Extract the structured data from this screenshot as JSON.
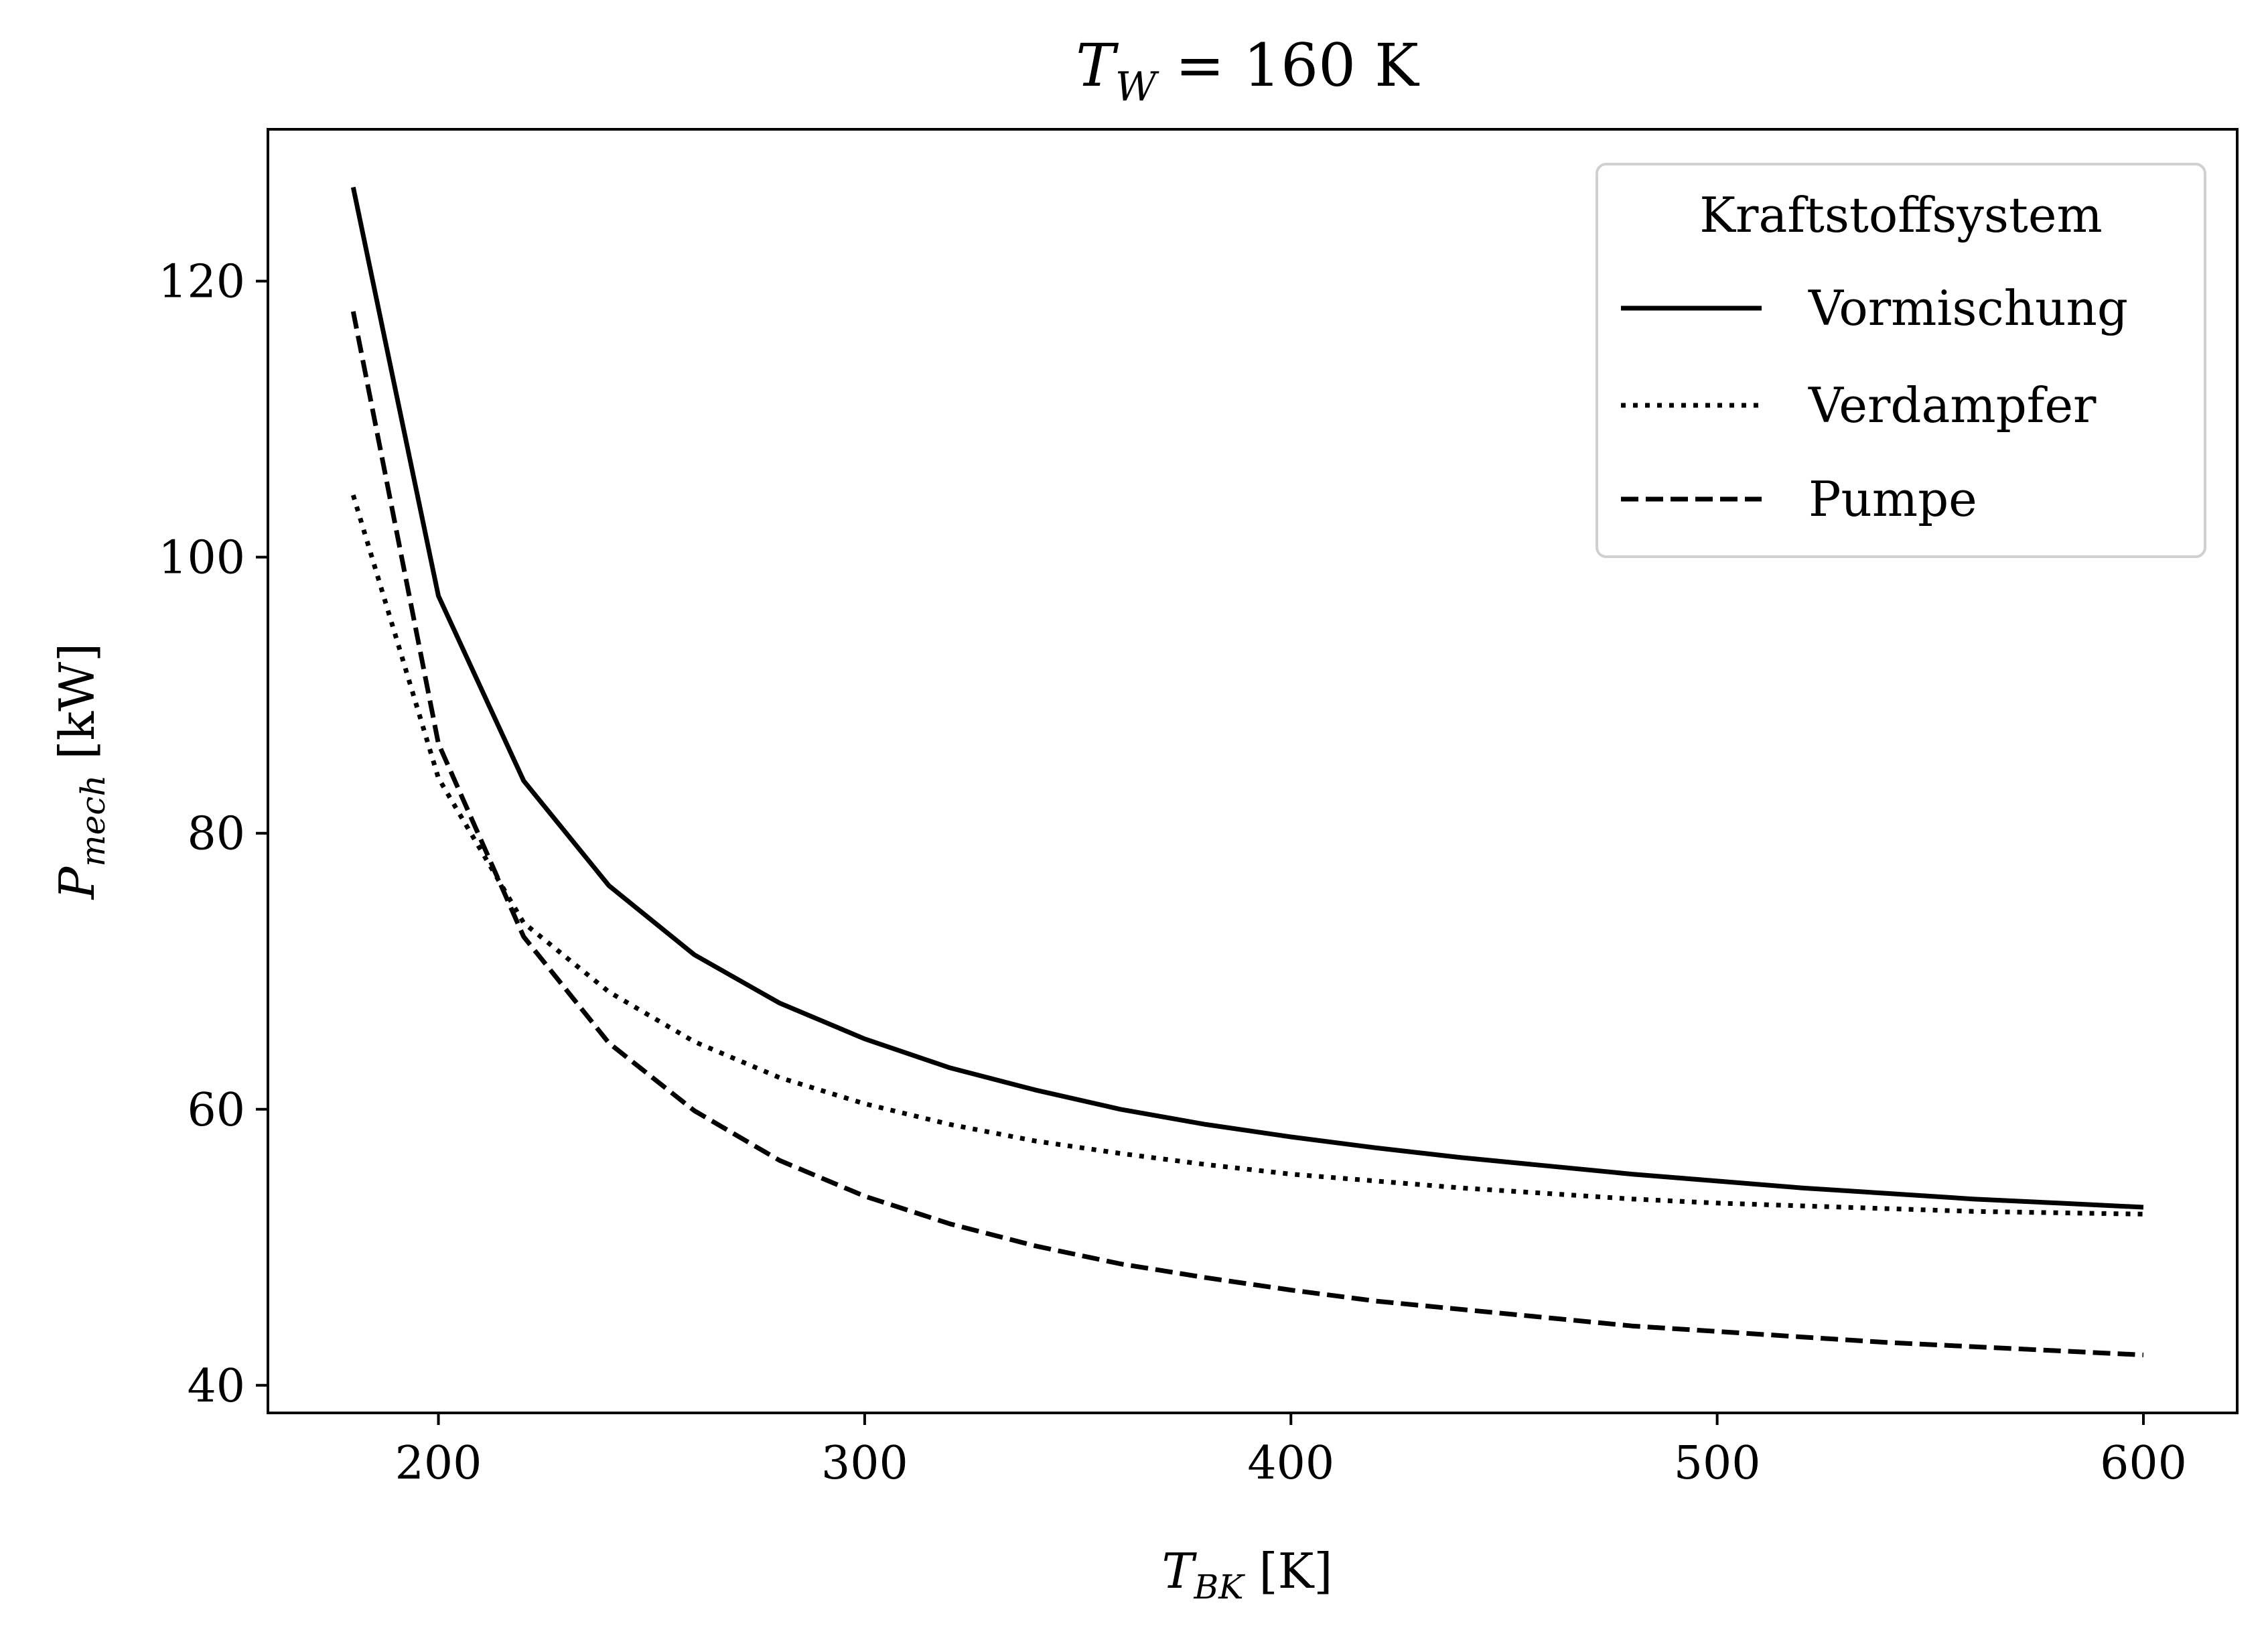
{
  "chart_data": {
    "type": "line",
    "title": {
      "main": "T",
      "sub": "W",
      "rest": " = 160 K"
    },
    "xlabel": {
      "main": "T",
      "sub": "BK",
      "rest": " [K]"
    },
    "ylabel": {
      "main": "P",
      "sub": "mech",
      "rest": " [kW]"
    },
    "xlim": [
      160,
      622
    ],
    "ylim": [
      38,
      131
    ],
    "xticks": [
      200,
      300,
      400,
      500,
      600
    ],
    "yticks": [
      40,
      60,
      80,
      100,
      120
    ],
    "grid": false,
    "legend": {
      "title": "Kraftstoffsystem",
      "position": "top-right"
    },
    "x": [
      180,
      200,
      220,
      240,
      260,
      280,
      300,
      320,
      340,
      360,
      380,
      400,
      420,
      440,
      460,
      480,
      500,
      520,
      540,
      560,
      580,
      600
    ],
    "series": [
      {
        "name": "Vormischung",
        "style": "solid",
        "color": "#000000",
        "values": [
          126.8,
          97.2,
          83.8,
          76.2,
          71.2,
          67.7,
          65.1,
          63.0,
          61.4,
          60.0,
          58.9,
          58.0,
          57.2,
          56.5,
          55.9,
          55.3,
          54.8,
          54.3,
          53.9,
          53.5,
          53.2,
          52.9
        ]
      },
      {
        "name": "Verdampfer",
        "style": "dotted",
        "color": "#000000",
        "values": [
          104.5,
          84.0,
          73.5,
          68.5,
          64.9,
          62.3,
          60.4,
          58.9,
          57.7,
          56.8,
          56.0,
          55.3,
          54.8,
          54.3,
          53.9,
          53.5,
          53.2,
          53.0,
          52.8,
          52.6,
          52.5,
          52.4
        ]
      },
      {
        "name": "Pumpe",
        "style": "dashed",
        "color": "#000000",
        "values": [
          117.8,
          86.5,
          72.5,
          64.8,
          59.9,
          56.3,
          53.7,
          51.7,
          50.1,
          48.8,
          47.8,
          46.9,
          46.1,
          45.5,
          44.9,
          44.3,
          43.9,
          43.5,
          43.1,
          42.8,
          42.5,
          42.2
        ]
      }
    ]
  }
}
